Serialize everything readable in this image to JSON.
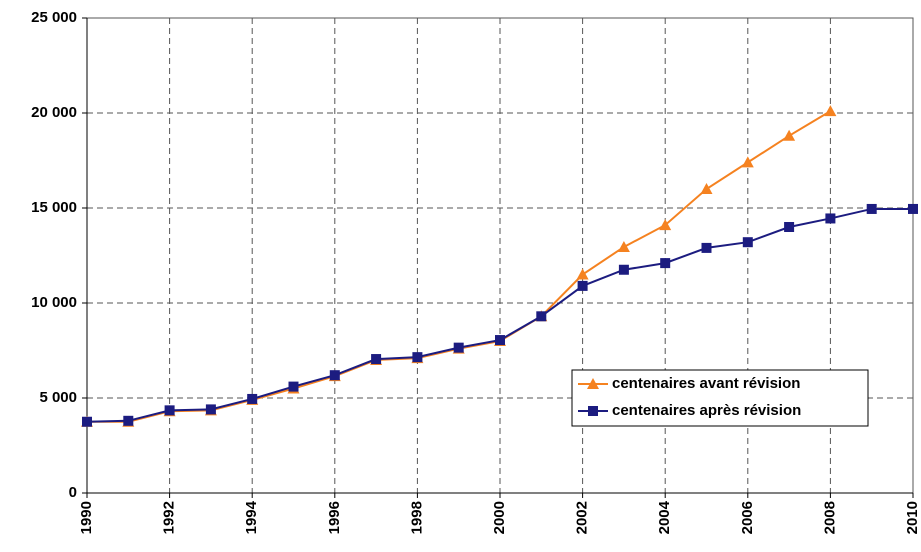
{
  "chart_data": {
    "type": "line",
    "x": [
      1990,
      1991,
      1992,
      1993,
      1994,
      1995,
      1996,
      1997,
      1998,
      1999,
      2000,
      2001,
      2002,
      2003,
      2004,
      2005,
      2006,
      2007,
      2008,
      2009,
      2010
    ],
    "xlim": [
      1990,
      2010
    ],
    "xticks": [
      1990,
      1992,
      1994,
      1996,
      1998,
      2000,
      2002,
      2004,
      2006,
      2008,
      2010
    ],
    "ylim": [
      0,
      25000
    ],
    "yticks": [
      0,
      {
        "value": 5000,
        "label": "5 000"
      },
      {
        "value": 10000,
        "label": "10 000"
      },
      {
        "value": 15000,
        "label": "15 000"
      },
      {
        "value": 20000,
        "label": "20 000"
      },
      {
        "value": 25000,
        "label": "25 000"
      }
    ],
    "grid": true,
    "legend": "right",
    "series": [
      {
        "name": "centenaires avant révision",
        "color": "#f58220",
        "marker": "triangle",
        "values": [
          3750,
          3750,
          4300,
          4350,
          4900,
          5500,
          6150,
          7000,
          7100,
          7600,
          8000,
          9300,
          11500,
          12950,
          14100,
          16000,
          17400,
          18800,
          20100,
          null,
          null
        ]
      },
      {
        "name": "centenaires après révision",
        "color": "#1c1c80",
        "marker": "square",
        "values": [
          3750,
          3800,
          4350,
          4400,
          4950,
          5600,
          6200,
          7050,
          7150,
          7650,
          8050,
          9300,
          10900,
          11750,
          12100,
          12900,
          13200,
          14000,
          14450,
          14950,
          14950
        ]
      }
    ]
  }
}
